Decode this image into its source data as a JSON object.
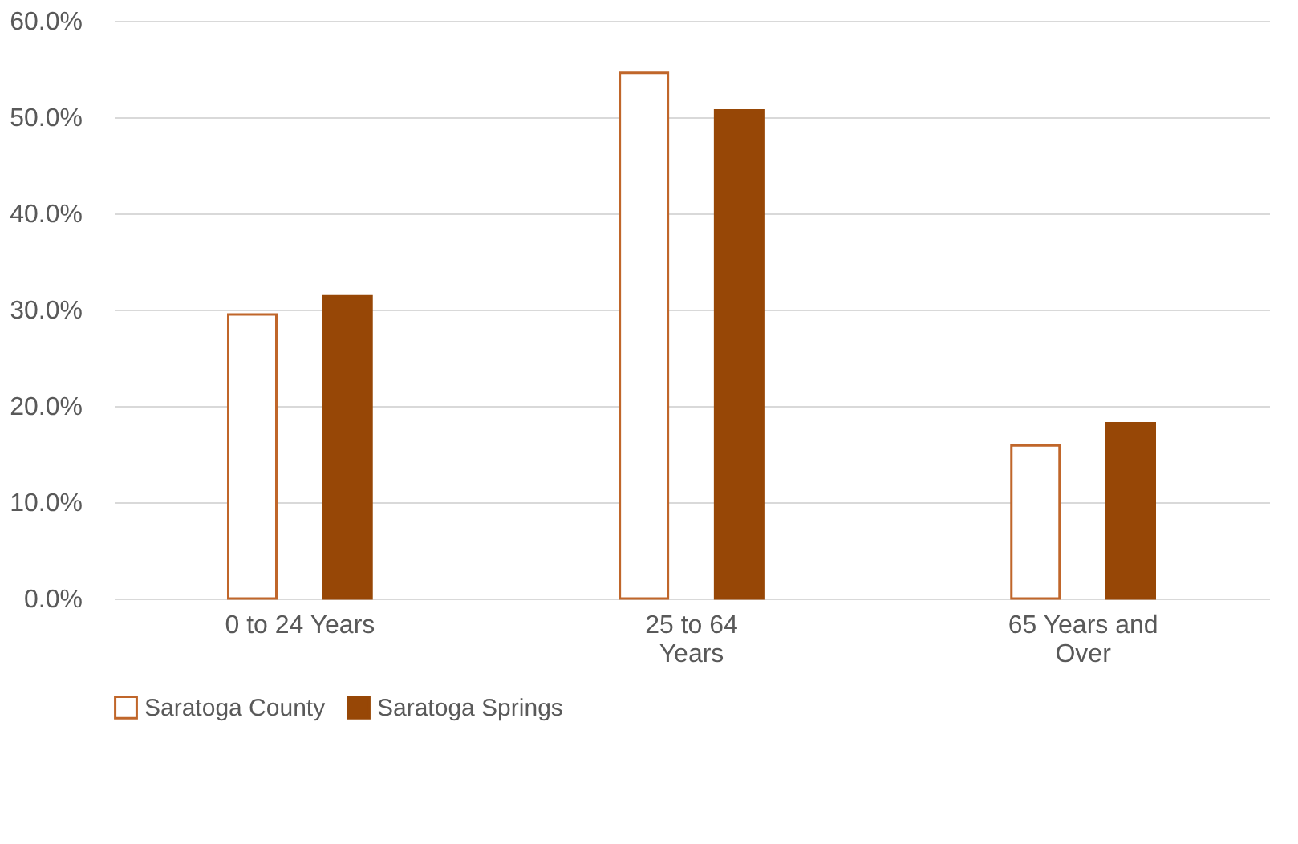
{
  "chart_data": {
    "type": "bar",
    "categories": [
      "0 to 24 Years",
      "25 to 64 Years",
      "65 Years and Over"
    ],
    "series": [
      {
        "name": "Saratoga County",
        "color": "#c0662a",
        "values": [
          29.5,
          54.6,
          15.9
        ]
      },
      {
        "name": "Saratoga Springs",
        "color": "#974706",
        "values": [
          31.4,
          50.7,
          18.2
        ]
      }
    ],
    "ylim": [
      0,
      60
    ],
    "yticks": [
      {
        "value": 0,
        "label": "0.0%"
      },
      {
        "value": 10,
        "label": "10.0%"
      },
      {
        "value": 20,
        "label": "20.0%"
      },
      {
        "value": 30,
        "label": "30.0%"
      },
      {
        "value": 40,
        "label": "40.0%"
      },
      {
        "value": 50,
        "label": "50.0%"
      },
      {
        "value": 60,
        "label": "60.0%"
      }
    ],
    "grid": "y",
    "legend": "bottom"
  }
}
